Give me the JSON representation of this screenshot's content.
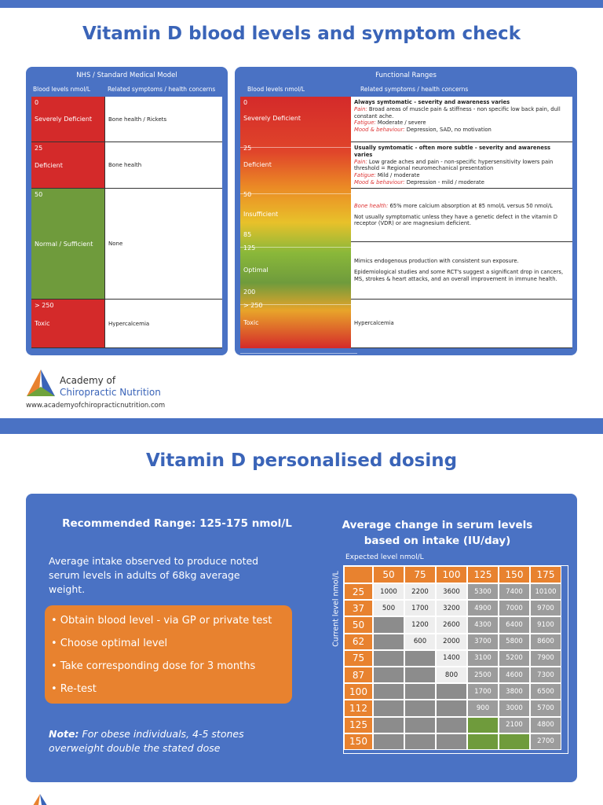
{
  "header": {
    "title": "Vitamin D blood levels and symptom check"
  },
  "nhs": {
    "title": "NHS / Standard Medical Model",
    "col_headers": [
      "Blood levels nmol/L",
      "Related symptoms / health concerns"
    ],
    "rows": [
      {
        "levels": [
          "0"
        ],
        "label": "Severely Deficient",
        "symptoms": "Bone health / Rickets"
      },
      {
        "levels": [
          "25"
        ],
        "label": "Deficient",
        "symptoms": "Bone health"
      },
      {
        "levels": [
          "50"
        ],
        "label": "Normal / Sufficient",
        "symptoms": "None"
      },
      {
        "levels": [
          "> 250"
        ],
        "label": "Toxic",
        "symptoms": "Hypercalcemia"
      }
    ]
  },
  "functional": {
    "title": "Functional Ranges",
    "col_headers": [
      "Blood levels nmol/L",
      "Related symptoms / health concerns"
    ],
    "rows": [
      {
        "levels": [
          "0"
        ],
        "label": "Severely Deficient",
        "heading": "Always symtomatic - severity and awareness varies",
        "items": [
          {
            "label": "Pain:",
            "text": "Broad areas of muscle pain & stiffness - non specific low back pain, dull constant ache."
          },
          {
            "label": "Fatigue:",
            "text": "Moderate / severe"
          },
          {
            "label": "Mood & behaviour:",
            "text": "Depression, SAD, no motivation"
          }
        ]
      },
      {
        "levels": [
          "25"
        ],
        "label": "Deficient",
        "heading": "Usually symtomatic - often more subtle - severity and awareness varies",
        "items": [
          {
            "label": "Pain:",
            "text": "Low grade aches and pain - non-specific hypersensitivity lowers pain threshold = Regional neuromechanical presentation"
          },
          {
            "label": "Fatigue:",
            "text": "Mild / moderate"
          },
          {
            "label": "Mood & behaviour:",
            "text": "Depression - mild / moderate"
          }
        ]
      },
      {
        "levels": [
          "50",
          "85"
        ],
        "label": "Insufficient",
        "items": [
          {
            "label": "Bone health:",
            "text": "65% more calcium absorption at 85 nmol/L versus 50 nmol/L"
          },
          {
            "text": "Not usually symptomatic unless they have a genetic defect in the vitamin D receptor (VDR) or are magnesium deficient."
          }
        ]
      },
      {
        "levels": [
          "125",
          "200"
        ],
        "label": "Optimal",
        "items": [
          {
            "text": "Mimics endogenous production with consistent sun exposure."
          },
          {
            "text": "Epidemiological studies and some RCT's suggest a significant drop in cancers, MS, strokes & heart attacks, and an overall improvement in immune health."
          }
        ]
      },
      {
        "levels": [
          "> 250"
        ],
        "label": "Toxic",
        "items": [
          {
            "text": "Hypercalcemia"
          }
        ]
      }
    ]
  },
  "logo": {
    "line1": "Academy of",
    "line2": "Chiropractic Nutrition",
    "url": "www.academyofchiropracticnutrition.com"
  },
  "dosing": {
    "title": "Vitamin D personalised dosing",
    "range_title": "Recommended Range: 125-175 nmol/L",
    "intake_text": "Average intake observed to produce noted serum levels in adults of 68kg average weight.",
    "steps": [
      "• Obtain blood level - via GP or private test",
      "• Choose optimal level",
      "• Take corresponding dose for 3 months",
      "• Re-test"
    ],
    "note_label": "Note:",
    "note_text": "For obese individuals, 4-5 stones overweight double the stated dose",
    "table": {
      "title": "Average change in serum levels based on intake (IU/day)",
      "x_label": "Expected level nmol/L",
      "y_label": "Current level nmol/L",
      "columns": [
        50,
        75,
        100,
        125,
        150,
        175
      ],
      "rows": [
        {
          "level": 25,
          "cells": [
            1000,
            2200,
            3600,
            5300,
            7400,
            10100
          ]
        },
        {
          "level": 37,
          "cells": [
            500,
            1700,
            3200,
            4900,
            7000,
            9700
          ]
        },
        {
          "level": 50,
          "cells": [
            null,
            1200,
            2600,
            4300,
            6400,
            9100
          ]
        },
        {
          "level": 62,
          "cells": [
            null,
            600,
            2000,
            3700,
            5800,
            8600
          ]
        },
        {
          "level": 75,
          "cells": [
            null,
            null,
            1400,
            3100,
            5200,
            7900
          ]
        },
        {
          "level": 87,
          "cells": [
            null,
            null,
            800,
            2500,
            4600,
            7300
          ]
        },
        {
          "level": 100,
          "cells": [
            null,
            null,
            null,
            1700,
            3800,
            6500
          ]
        },
        {
          "level": 112,
          "cells": [
            null,
            null,
            null,
            900,
            3000,
            5700
          ]
        },
        {
          "level": 125,
          "cells": [
            null,
            null,
            null,
            null,
            2100,
            4800
          ]
        },
        {
          "level": 150,
          "cells": [
            null,
            null,
            null,
            null,
            null,
            2700
          ]
        }
      ]
    }
  }
}
